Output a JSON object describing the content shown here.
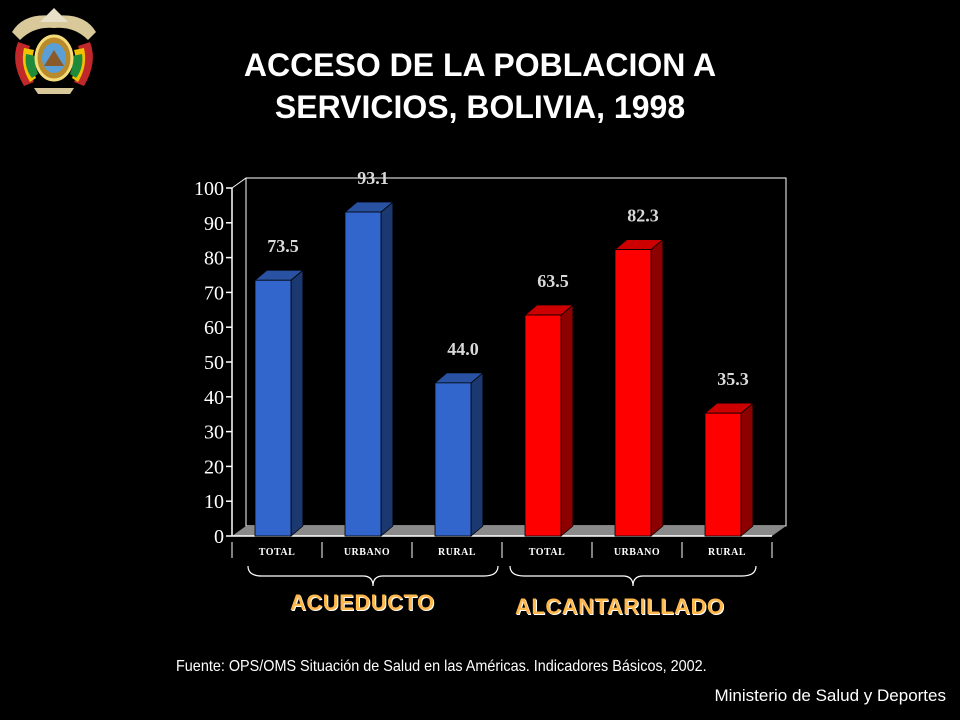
{
  "title_lines": [
    "ACCESO DE LA POBLACION A",
    "SERVICIOS, BOLIVIA, 1998"
  ],
  "source_text": "Fuente: OPS/OMS Situación de Salud en las Américas.  Indicadores Básicos, 2002.",
  "footer_text": "Ministerio de Salud y Deportes",
  "emblem_icon": "bolivia-coat-of-arms-icon",
  "groups": [
    {
      "label": "ACUEDUCTO",
      "color": "#ffb84d"
    },
    {
      "label": "ALCANTARILLADO",
      "color": "#ffb84d"
    }
  ],
  "chart_data": {
    "type": "bar",
    "title": "ACCESO DE LA POBLACION A SERVICIOS, BOLIVIA, 1998",
    "categories": [
      "TOTAL",
      "URBANO",
      "RURAL",
      "TOTAL",
      "URBANO",
      "RURAL"
    ],
    "series": [
      {
        "values": [
          73.5,
          93.1,
          44.0,
          null,
          null,
          null
        ],
        "color": "#3366cc"
      },
      {
        "values": [
          null,
          null,
          null,
          63.5,
          82.3,
          35.3
        ],
        "color": "#ff0000"
      }
    ],
    "data_labels": [
      "73.5",
      "93.1",
      "44.0",
      "63.5",
      "82.3",
      "35.3"
    ],
    "y_ticks": [
      0,
      10,
      20,
      30,
      40,
      50,
      60,
      70,
      80,
      90,
      100
    ],
    "ylim": [
      0,
      100
    ],
    "grid": false,
    "style": "3d-bars"
  }
}
